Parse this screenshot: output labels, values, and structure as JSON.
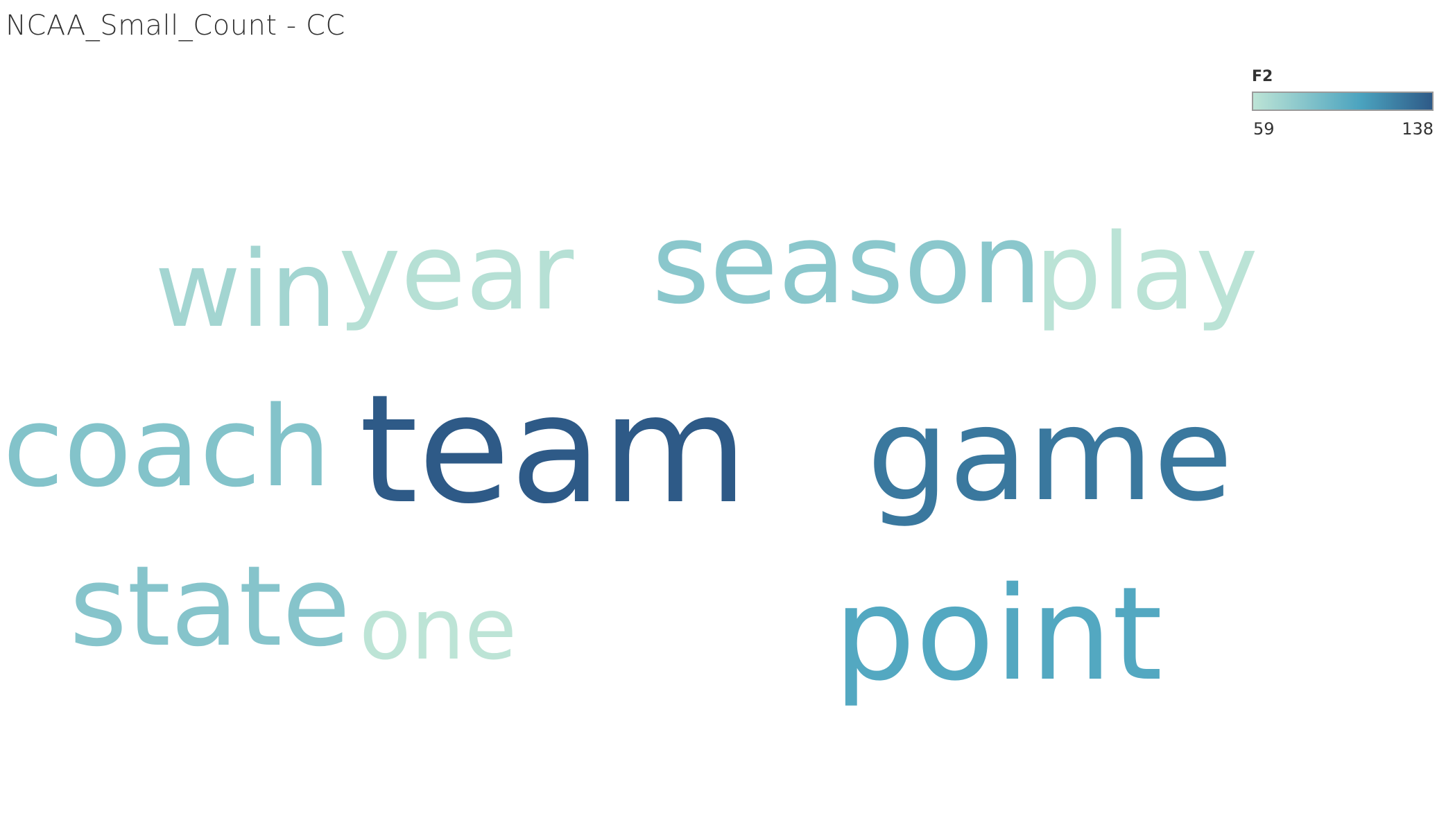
{
  "title": "NCAA_Small_Count - CC",
  "legend": {
    "title": "F2",
    "min_label": "59",
    "max_label": "138",
    "color_low": "#bde4d6",
    "color_mid": "#4ba3bf",
    "color_high": "#2e5a87"
  },
  "chart_data": {
    "type": "word_cloud",
    "color_measure": "F2",
    "color_range": [
      59,
      138
    ],
    "words": [
      {
        "text": "team",
        "value": 138
      },
      {
        "text": "game",
        "value": 125
      },
      {
        "text": "point",
        "value": 103
      },
      {
        "text": "coach",
        "value": 83
      },
      {
        "text": "state",
        "value": 82
      },
      {
        "text": "season",
        "value": 80
      },
      {
        "text": "win",
        "value": 70
      },
      {
        "text": "year",
        "value": 62
      },
      {
        "text": "play",
        "value": 60
      },
      {
        "text": "one",
        "value": 59
      }
    ]
  }
}
